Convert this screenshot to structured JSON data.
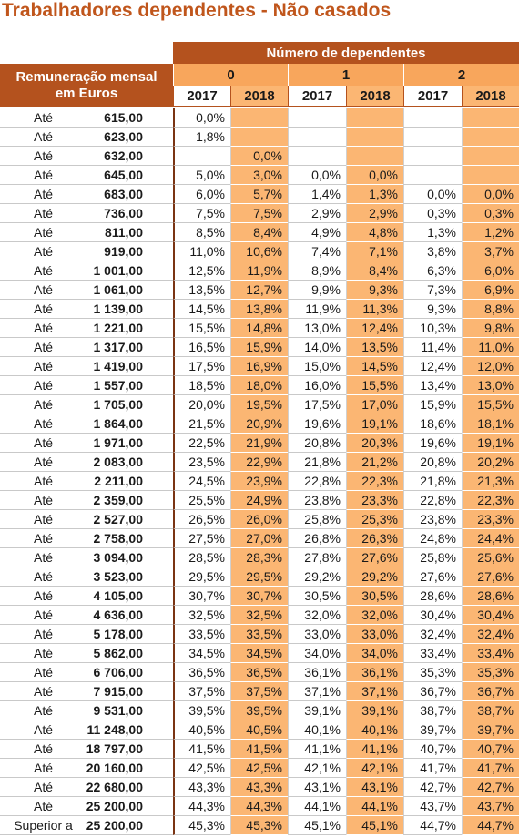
{
  "title": "Trabalhadores dependentes - Não casados",
  "header": {
    "group": "Número de dependentes",
    "row_label": "Remuneração mensal em Euros",
    "dependents": [
      "0",
      "1",
      "2"
    ],
    "years": [
      "2017",
      "2018",
      "2017",
      "2018",
      "2017",
      "2018"
    ]
  },
  "table": {
    "rows": [
      [
        "Até",
        "615,00",
        "0,0%",
        null,
        null,
        null,
        null,
        null
      ],
      [
        "Até",
        "623,00",
        "1,8%",
        null,
        null,
        null,
        null,
        null
      ],
      [
        "Até",
        "632,00",
        null,
        "0,0%",
        null,
        null,
        null,
        null
      ],
      [
        "Até",
        "645,00",
        "5,0%",
        "3,0%",
        "0,0%",
        "0,0%",
        null,
        null
      ],
      [
        "Até",
        "683,00",
        "6,0%",
        "5,7%",
        "1,4%",
        "1,3%",
        "0,0%",
        "0,0%"
      ],
      [
        "Até",
        "736,00",
        "7,5%",
        "7,5%",
        "2,9%",
        "2,9%",
        "0,3%",
        "0,3%"
      ],
      [
        "Até",
        "811,00",
        "8,5%",
        "8,4%",
        "4,9%",
        "4,8%",
        "1,3%",
        "1,2%"
      ],
      [
        "Até",
        "919,00",
        "11,0%",
        "10,6%",
        "7,4%",
        "7,1%",
        "3,8%",
        "3,7%"
      ],
      [
        "Até",
        "1 001,00",
        "12,5%",
        "11,9%",
        "8,9%",
        "8,4%",
        "6,3%",
        "6,0%"
      ],
      [
        "Até",
        "1 061,00",
        "13,5%",
        "12,7%",
        "9,9%",
        "9,3%",
        "7,3%",
        "6,9%"
      ],
      [
        "Até",
        "1 139,00",
        "14,5%",
        "13,8%",
        "11,9%",
        "11,3%",
        "9,3%",
        "8,8%"
      ],
      [
        "Até",
        "1 221,00",
        "15,5%",
        "14,8%",
        "13,0%",
        "12,4%",
        "10,3%",
        "9,8%"
      ],
      [
        "Até",
        "1 317,00",
        "16,5%",
        "15,9%",
        "14,0%",
        "13,5%",
        "11,4%",
        "11,0%"
      ],
      [
        "Até",
        "1 419,00",
        "17,5%",
        "16,9%",
        "15,0%",
        "14,5%",
        "12,4%",
        "12,0%"
      ],
      [
        "Até",
        "1 557,00",
        "18,5%",
        "18,0%",
        "16,0%",
        "15,5%",
        "13,4%",
        "13,0%"
      ],
      [
        "Até",
        "1 705,00",
        "20,0%",
        "19,5%",
        "17,5%",
        "17,0%",
        "15,9%",
        "15,5%"
      ],
      [
        "Até",
        "1 864,00",
        "21,5%",
        "20,9%",
        "19,6%",
        "19,1%",
        "18,6%",
        "18,1%"
      ],
      [
        "Até",
        "1 971,00",
        "22,5%",
        "21,9%",
        "20,8%",
        "20,3%",
        "19,6%",
        "19,1%"
      ],
      [
        "Até",
        "2 083,00",
        "23,5%",
        "22,9%",
        "21,8%",
        "21,2%",
        "20,8%",
        "20,2%"
      ],
      [
        "Até",
        "2 211,00",
        "24,5%",
        "23,9%",
        "22,8%",
        "22,3%",
        "21,8%",
        "21,3%"
      ],
      [
        "Até",
        "2 359,00",
        "25,5%",
        "24,9%",
        "23,8%",
        "23,3%",
        "22,8%",
        "22,3%"
      ],
      [
        "Até",
        "2 527,00",
        "26,5%",
        "26,0%",
        "25,8%",
        "25,3%",
        "23,8%",
        "23,3%"
      ],
      [
        "Até",
        "2 758,00",
        "27,5%",
        "27,0%",
        "26,8%",
        "26,3%",
        "24,8%",
        "24,4%"
      ],
      [
        "Até",
        "3 094,00",
        "28,5%",
        "28,3%",
        "27,8%",
        "27,6%",
        "25,8%",
        "25,6%"
      ],
      [
        "Até",
        "3 523,00",
        "29,5%",
        "29,5%",
        "29,2%",
        "29,2%",
        "27,6%",
        "27,6%"
      ],
      [
        "Até",
        "4 105,00",
        "30,7%",
        "30,7%",
        "30,5%",
        "30,5%",
        "28,6%",
        "28,6%"
      ],
      [
        "Até",
        "4 636,00",
        "32,5%",
        "32,5%",
        "32,0%",
        "32,0%",
        "30,4%",
        "30,4%"
      ],
      [
        "Até",
        "5 178,00",
        "33,5%",
        "33,5%",
        "33,0%",
        "33,0%",
        "32,4%",
        "32,4%"
      ],
      [
        "Até",
        "5 862,00",
        "34,5%",
        "34,5%",
        "34,0%",
        "34,0%",
        "33,4%",
        "33,4%"
      ],
      [
        "Até",
        "6 706,00",
        "36,5%",
        "36,5%",
        "36,1%",
        "36,1%",
        "35,3%",
        "35,3%"
      ],
      [
        "Até",
        "7 915,00",
        "37,5%",
        "37,5%",
        "37,1%",
        "37,1%",
        "36,7%",
        "36,7%"
      ],
      [
        "Até",
        "9 531,00",
        "39,5%",
        "39,5%",
        "39,1%",
        "39,1%",
        "38,7%",
        "38,7%"
      ],
      [
        "Até",
        "11 248,00",
        "40,5%",
        "40,5%",
        "40,1%",
        "40,1%",
        "39,7%",
        "39,7%"
      ],
      [
        "Até",
        "18 797,00",
        "41,5%",
        "41,5%",
        "41,1%",
        "41,1%",
        "40,7%",
        "40,7%"
      ],
      [
        "Até",
        "20 160,00",
        "42,5%",
        "42,5%",
        "42,1%",
        "42,1%",
        "41,7%",
        "41,7%"
      ],
      [
        "Até",
        "22 680,00",
        "43,3%",
        "43,3%",
        "43,1%",
        "43,1%",
        "42,7%",
        "42,7%"
      ],
      [
        "Até",
        "25 200,00",
        "44,3%",
        "44,3%",
        "44,1%",
        "44,1%",
        "43,7%",
        "43,7%"
      ],
      [
        "Superior a",
        "25 200,00",
        "45,3%",
        "45,3%",
        "45,1%",
        "45,1%",
        "44,7%",
        "44,7%"
      ]
    ]
  }
}
